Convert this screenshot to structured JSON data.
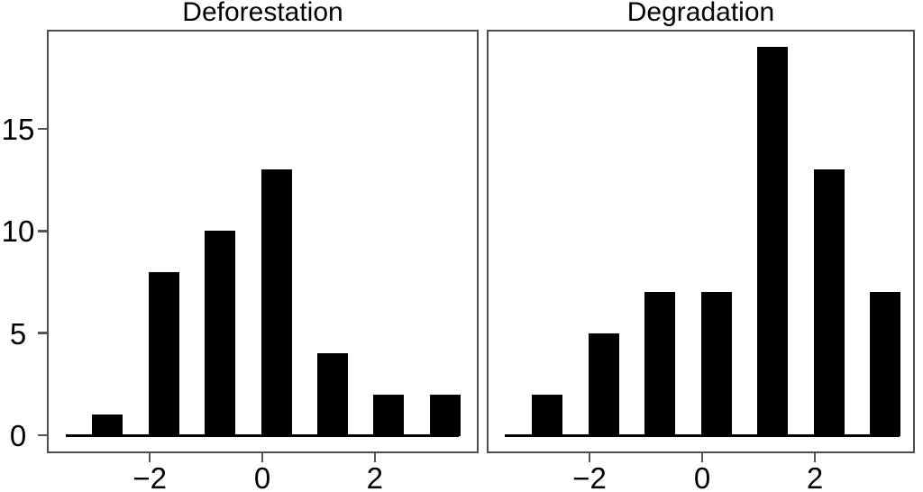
{
  "figure": {
    "background": "#ffffff",
    "bar_color": "#000000",
    "panel_border_color": "#4d4d4d",
    "tick_color": "#555555",
    "text_color": "#000000"
  },
  "chart_data": [
    {
      "type": "bar",
      "title": "Deforestation",
      "x": [
        -2.75,
        -1.75,
        -0.75,
        0.25,
        1.25,
        2.25,
        3.25
      ],
      "values": [
        1,
        8,
        10,
        13,
        4,
        2,
        2
      ],
      "xlabel": "",
      "ylabel": "",
      "x_ticks": [
        -2,
        0,
        2
      ],
      "x_tick_labels": [
        "−2",
        "0",
        "2"
      ],
      "y_ticks": [
        0,
        5,
        10,
        15
      ],
      "y_tick_labels": [
        "0",
        "5",
        "10",
        "15"
      ],
      "xlim": [
        -3.85,
        3.85
      ],
      "ylim": [
        0,
        19.85
      ],
      "baseline_span": [
        -3.5,
        3.5
      ],
      "bar_color": "#000000",
      "grid": false,
      "legend": false
    },
    {
      "type": "bar",
      "title": "Degradation",
      "x": [
        -2.75,
        -1.75,
        -0.75,
        0.25,
        1.25,
        2.25,
        3.25
      ],
      "values": [
        2,
        5,
        7,
        7,
        19,
        13,
        7
      ],
      "xlabel": "",
      "ylabel": "",
      "x_ticks": [
        -2,
        0,
        2
      ],
      "x_tick_labels": [
        "−2",
        "0",
        "2"
      ],
      "xlim": [
        -3.85,
        3.85
      ],
      "ylim": [
        0,
        19.85
      ],
      "baseline_span": [
        -3.5,
        3.5
      ],
      "bar_color": "#000000",
      "grid": false,
      "legend": false
    }
  ]
}
